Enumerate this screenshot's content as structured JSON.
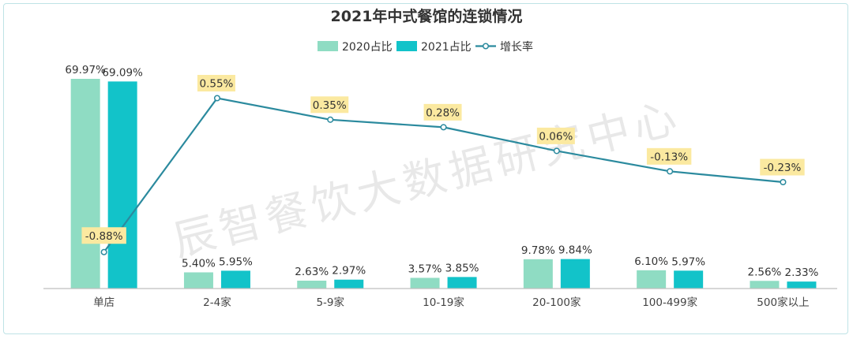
{
  "chart_data": {
    "type": "bar",
    "title": "2021年中式餐馆的连锁情况",
    "categories": [
      "单店",
      "2-4家",
      "5-9家",
      "10-19家",
      "20-100家",
      "100-499家",
      "500家以上"
    ],
    "series": [
      {
        "name": "2020占比",
        "kind": "bar",
        "color": "#8fdcc3",
        "values": [
          69.97,
          5.4,
          2.63,
          3.57,
          9.78,
          6.1,
          2.56
        ],
        "labels": [
          "69.97%",
          "5.40%",
          "2.63%",
          "3.57%",
          "9.78%",
          "6.10%",
          "2.56%"
        ]
      },
      {
        "name": "2021占比",
        "kind": "bar",
        "color": "#12c3c9",
        "values": [
          69.09,
          5.95,
          2.97,
          3.85,
          9.84,
          5.97,
          2.33
        ],
        "labels": [
          "69.09%",
          "5.95%",
          "2.97%",
          "3.85%",
          "9.84%",
          "5.97%",
          "2.33%"
        ]
      },
      {
        "name": "增长率",
        "kind": "line",
        "color": "#2b8a9e",
        "values": [
          -0.88,
          0.55,
          0.35,
          0.28,
          0.06,
          -0.13,
          -0.23
        ],
        "labels": [
          "-0.88%",
          "0.55%",
          "0.35%",
          "0.28%",
          "0.06%",
          "-0.13%",
          "-0.23%"
        ]
      }
    ],
    "legend_position": "top-center",
    "grid": false,
    "label_box_color": "#fbe9a0",
    "watermark": "辰智餐饮大数据研究中心"
  }
}
